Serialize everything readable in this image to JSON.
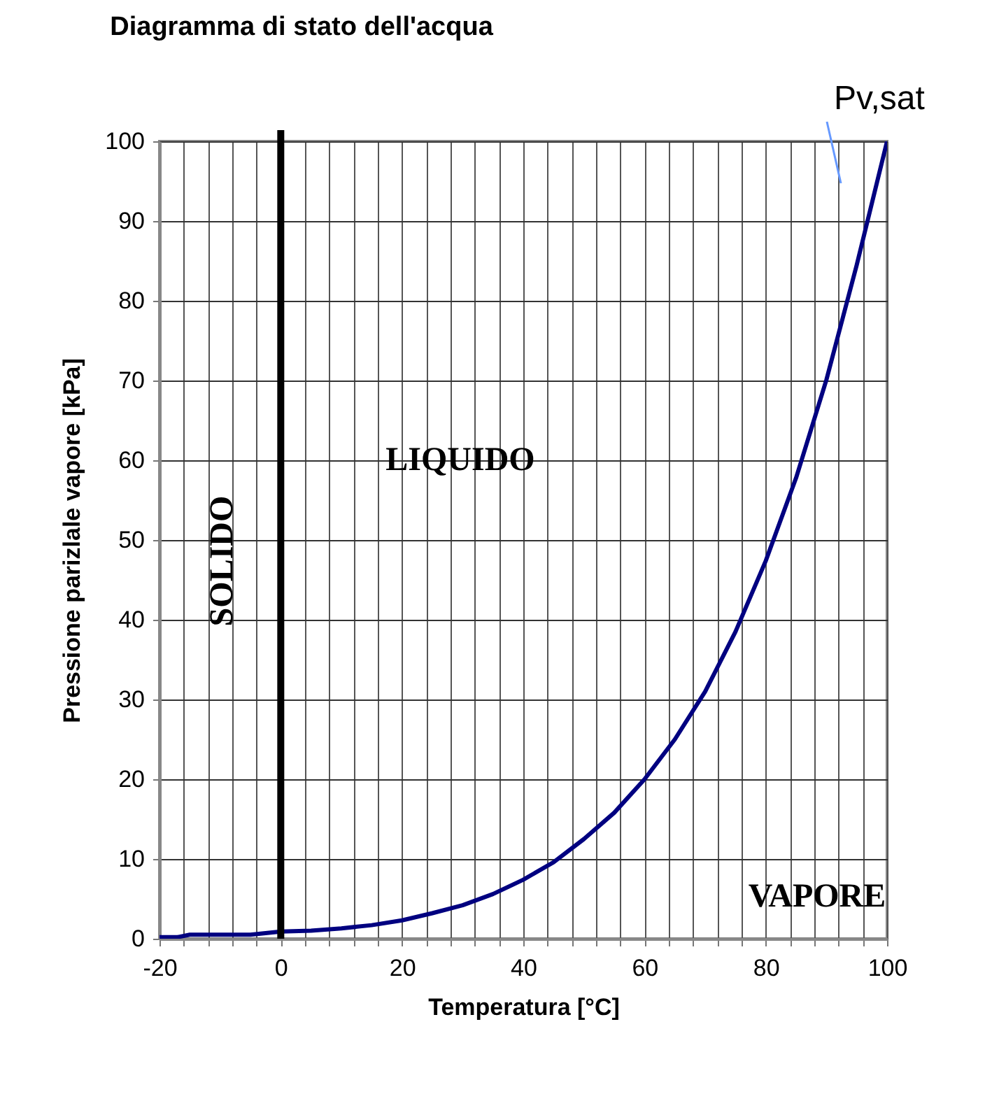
{
  "chart_data": {
    "type": "line",
    "title": "Diagramma di stato dell'acqua",
    "xlabel": "Temperatura [°C]",
    "ylabel": "Pressione parizlale vapore [kPa]",
    "x": [
      -20,
      -17,
      -15,
      -10,
      -5,
      0,
      5,
      10,
      15,
      20,
      25,
      30,
      35,
      40,
      45,
      50,
      55,
      60,
      65,
      70,
      75,
      80,
      85,
      90,
      95,
      100
    ],
    "series": [
      {
        "color": "#000080",
        "values": [
          0.2,
          0.2,
          0.5,
          0.5,
          0.5,
          0.9,
          1.0,
          1.3,
          1.7,
          2.3,
          3.2,
          4.2,
          5.6,
          7.4,
          9.6,
          12.5,
          15.8,
          20,
          25,
          31,
          38.5,
          47.4,
          57.8,
          70.1,
          84.5,
          100
        ]
      }
    ],
    "xlim": [
      -20,
      100
    ],
    "ylim": [
      0,
      100
    ],
    "xticks": [
      -20,
      {
        "value": -16,
        "label": null
      },
      {
        "value": -12,
        "label": null
      },
      {
        "value": -8,
        "label": null
      },
      {
        "value": -4,
        "label": null
      },
      0,
      {
        "value": 4,
        "label": null
      },
      {
        "value": 8,
        "label": null
      },
      {
        "value": 12,
        "label": null
      },
      {
        "value": 16,
        "label": null
      },
      20,
      {
        "value": 24,
        "label": null
      },
      {
        "value": 28,
        "label": null
      },
      {
        "value": 32,
        "label": null
      },
      {
        "value": 36,
        "label": null
      },
      40,
      {
        "value": 44,
        "label": null
      },
      {
        "value": 48,
        "label": null
      },
      {
        "value": 52,
        "label": null
      },
      {
        "value": 56,
        "label": null
      },
      60,
      {
        "value": 64,
        "label": null
      },
      {
        "value": 68,
        "label": null
      },
      {
        "value": 72,
        "label": null
      },
      {
        "value": 76,
        "label": null
      },
      80,
      {
        "value": 84,
        "label": null
      },
      {
        "value": 88,
        "label": null
      },
      {
        "value": 92,
        "label": null
      },
      {
        "value": 96,
        "label": null
      },
      100
    ],
    "yticks": [
      0,
      10,
      20,
      30,
      40,
      50,
      60,
      70,
      80,
      90,
      100
    ],
    "grid": true,
    "ref_lines": [
      {
        "axis": "x",
        "value": 0,
        "color": "#000000"
      }
    ],
    "annotations": [
      "LIQUIDO",
      "SOLIDO",
      "VAPORE",
      "Pv,sat"
    ]
  }
}
